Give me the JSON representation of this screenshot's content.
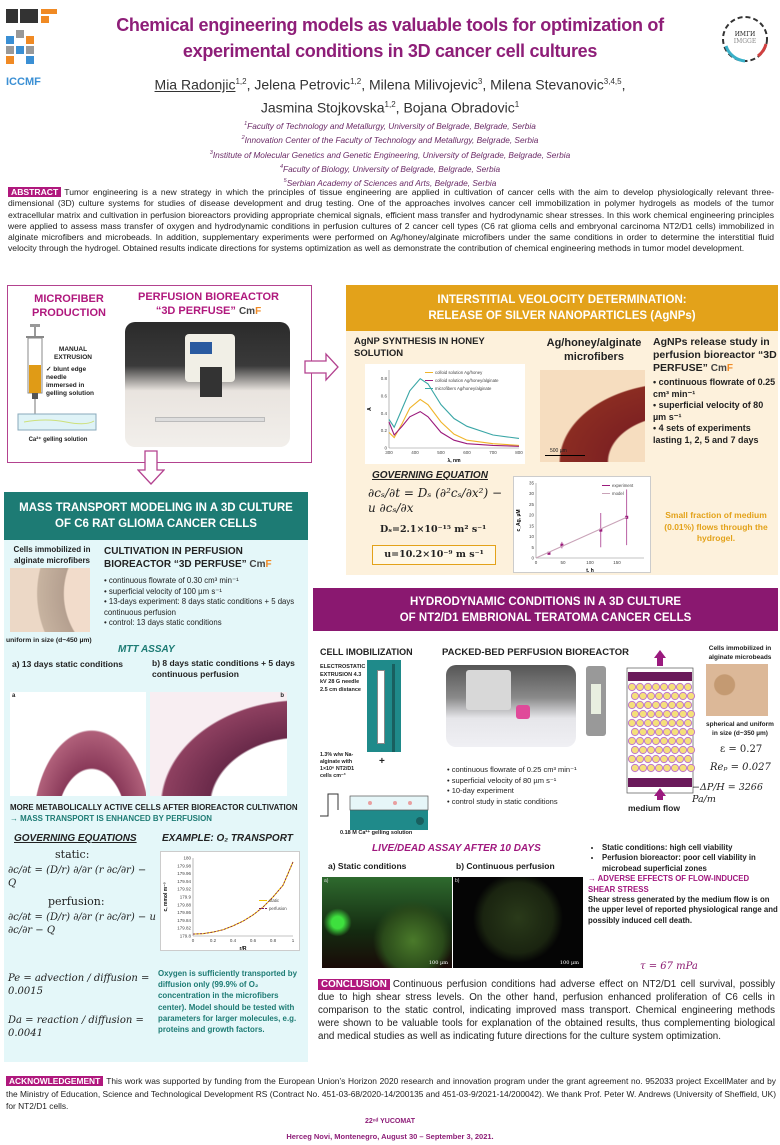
{
  "logos": {
    "left_top": "CMF",
    "left_bottom": "ICCMF",
    "right_top": "ИМГИ",
    "right_bottom": "IMGGE"
  },
  "title": "Chemical engineering models as valuable tools for optimization of experimental conditions in 3D cancer cell cultures",
  "authors": [
    {
      "name": "Mia Radonjic",
      "sup": "1,2",
      "presenting": true
    },
    {
      "name": "Jelena Petrovic",
      "sup": "1,2"
    },
    {
      "name": "Milena Milivojevic",
      "sup": "3"
    },
    {
      "name": "Milena Stevanovic",
      "sup": "3,4,5"
    },
    {
      "name": "Jasmina Stojkovska",
      "sup": "1,2"
    },
    {
      "name": "Bojana Obradovic",
      "sup": "1"
    }
  ],
  "affiliations": [
    {
      "num": "1",
      "text": "Faculty of Technology and Metallurgy, University of Belgrade, Belgrade, Serbia"
    },
    {
      "num": "2",
      "text": "Innovation Center of the Faculty of Technology and Metallurgy, Belgrade, Serbia"
    },
    {
      "num": "3",
      "text": "Institute of Molecular Genetics and Genetic Engineering, University of Belgrade, Belgrade, Serbia"
    },
    {
      "num": "4",
      "text": "Faculty of Biology, University of Belgrade, Belgrade, Serbia"
    },
    {
      "num": "5",
      "text": "Serbian Academy of Sciences and Arts, Belgrade, Serbia"
    }
  ],
  "abstract": {
    "label": "ABSTRACT",
    "text": "Tumor engineering is a new strategy in which the principles of tissue engineering are applied in cultivation of cancer cells with the aim to develop physiologically relevant three-dimensional (3D) culture systems for studies of disease development and drug testing. One of the approaches involves cancer cell immobilization in polymer hydrogels as models of the tumor extracellular matrix and cultivation in perfusion bioreactors providing appropriate chemical signals, efficient mass transfer and hydrodynamic shear stresses. In this work chemical engineering principles were applied to assess mass transfer of oxygen and hydrodynamic conditions in perfusion cultures of 2 cancer cell types (C6 rat glioma cells and embryonal carcinoma NT2/D1 cells) immobilized in alginate microfibers and microbeads. In addition, supplementary experiments were performed on Ag/honey/alginate microfibers under the same conditions in order to determine the interstitial fluid velocity through the hydrogel. Obtained results indicate directions for systems optimization as well as demonstrate the contribution of chemical engineering methods in tumor model development."
  },
  "production": {
    "heading": "MICROFIBER PRODUCTION",
    "extrusion": "MANUAL EXTRUSION",
    "extrusion_item": "blunt edge needle immersed in gelling solution",
    "gelling": "Ca²⁺ gelling solution",
    "bioreactor_heading_1": "PERFUSION BIOREACTOR",
    "bioreactor_heading_2": "“3D PERFUSE”"
  },
  "interstitial": {
    "header_1": "INTERSTITIAL VEOLOCITY DETERMINATION:",
    "header_2": "RELEASE OF SILVER NANOPARTICLES (AgNPs)",
    "synthesis_heading": "AgNP SYNTHESIS IN HONEY SOLUTION",
    "microfibers_heading": "Ag/honey/alginate microfibers",
    "scale_bar": "500 µm",
    "release_heading": "AgNPs release study in perfusion bioreactor “3D PERFUSE”",
    "bullets": [
      "continuous flowrate  of 0.25 cm³ min⁻¹",
      "superficial velocity of 80 µm s⁻¹",
      "4 sets of experiments lasting 1, 2, 5 and 7 days"
    ],
    "governing_heading": "GOVERNING EQUATION",
    "equation": "∂cₛ/∂t = Dₛ (∂²cₛ/∂x²) − u ∂cₛ/∂x",
    "ds": "Dₛ=2.1×10⁻¹⁵ m² s⁻¹",
    "u": "u=10.2×10⁻⁹ m s⁻¹",
    "note": "Small fraction of medium (0.01%) flows through the hydrogel."
  },
  "mass_transport": {
    "header_1": "MASS TRANSPORT MODELING IN A 3D CULTURE",
    "header_2": "OF C6 RAT GLIOMA CANCER CELLS",
    "cells_label": "Cells immobilized in alginate microfibers",
    "uniform": "uniform in size (d~450  µm)",
    "cultivation_heading": "CULTIVATION IN PERFUSION BIOREACTOR “3D PERFUSE”",
    "bullets": [
      "continuous flowrate  of 0.30 cm³ min⁻¹",
      "superficial velocity of 100 µm s⁻¹",
      "13-days experiment: 8 days static conditions + 5 days continuous perfusion",
      "control: 13 days static conditions"
    ],
    "mtt_heading": "MTT ASSAY",
    "mtt_a": "a)  13 days static conditions",
    "mtt_b": "b) 8 days static conditions + 5 days continuous perfusion",
    "img_a": "a",
    "img_b": "b",
    "result_1": "MORE METABOLICALLY ACTIVE CELLS AFTER BIOREACTOR CULTIVATION",
    "result_2": "→ MASS TRANSPORT IS ENHANCED BY PERFUSION",
    "governing_heading": "GOVERNING EQUATIONS",
    "example_heading": "EXAMPLE: O₂ TRANSPORT",
    "static_label": "static:",
    "static_eq": "∂c/∂t = (D/r) ∂/∂r (r ∂c/∂r) − Q",
    "perfusion_label": "perfusion:",
    "perfusion_eq": "∂c/∂t = (D/r) ∂/∂r (r ∂c/∂r) − u ∂c/∂r − Q",
    "pe": "Pe = advection / diffusion = 0.0015",
    "da": "Da = reaction / diffusion = 0.0041",
    "note": "Oxygen is sufficiently transported by diffusion only (99.9% of O₂ concentration in the microfibers center). Model should be tested with parameters for larger molecules, e.g. proteins and growth factors."
  },
  "hydrodynamic": {
    "header_1": "HYDRODYNAMIC CONDITIONS IN A 3D CULTURE",
    "header_2": "OF NT2/D1 EMBRIONAL TERATOMA CANCER CELLS",
    "immobilization_heading": "CELL IMOBILIZATION",
    "extrusion": "ELECTROSTATIC EXTRUSION 4.3 kV 28 G needle 2.5 cm distance",
    "alginate": "1.3% w/w Na-alginate with 1×10⁶ NT2/D1 cells cm⁻³",
    "gelling": "0.18 M Ca²⁺ gelling solution",
    "packed_heading": "PACKED-BED PERFUSION BIOREACTOR",
    "bullets": [
      "continuous flowrate  of 0.25 cm³ min⁻¹",
      "superficial velocity of 80 µm s⁻¹",
      "10-day experiment",
      "control study in static conditions"
    ],
    "medium_flow": "medium flow",
    "beads_label": "Cells immobilized in alginate microbeads",
    "beads_size": "spherical and uniform in size (d~350  µm)",
    "eps": "ε = 0.27",
    "rep": "Reₚ = 0.027",
    "dp": "−ΔP/H = 3266 Pa/m",
    "livedead_heading": "LIVE/DEAD ASSAY AFTER 10 DAYS",
    "ld_a": "a)  Static conditions",
    "ld_b": "b) Continuous perfusion",
    "img_a": "a)",
    "img_b": "b)",
    "scale": "100 µm",
    "findings": [
      "Static conditions: high cell viability",
      "Perfusion bioreactor: poor cell viability in microbead superficial zones"
    ],
    "adverse": "→ ADVERSE EFFECTS OF FLOW-INDUCED SHEAR STRESS",
    "shear_text": "Shear stress generated by the medium flow is on the upper level of reported physiological range and possibly induced cell death.",
    "tau": "τ = 67 mPa"
  },
  "conclusion": {
    "label": "CONCLUSION",
    "text": "Continuous perfusion conditions had adverse effect on NT2/D1 cell survival, possibly due to high shear stress levels. On the other hand, perfusion enhanced proliferation of C6 cells in comparison to the static control, indicating improved mass transport. Chemical engineering methods were shown to be valuable tools for explanation of the obtained results, thus complementing biological and medical studies as well as indicating future directions for the culture system optimization."
  },
  "acknowledgement": {
    "label": "ACKNOWLEDGEMENT",
    "text": "This work was supported by funding from the European Union’s Horizon 2020 research and innovation program under the grant agreement no. 952033 project ExcellMater and by the Ministry of Education, Science and Technological Development RS (Contract No. 451-03-68/2020-14/200135 and 451-03-9/2021-14/200042). We thank Prof. Peter W. Andrews (University of Sheffield, UK) for NT2/D1 cells."
  },
  "footer": {
    "conference": "22ⁿᵈ YUCOMAT",
    "location": "Herceg Novi, Montenegro, August 30 – September 3, 2021."
  },
  "colors": {
    "title": "#8e1e78",
    "orange": "#e3a21a",
    "teal": "#1d7b74",
    "purple": "#8a1870",
    "tag": "#b0187d"
  },
  "chart_data": [
    {
      "type": "line",
      "xlabel": "λ, nm",
      "ylabel": "A",
      "xlim": [
        300,
        800
      ],
      "ylim": [
        0,
        0.9
      ],
      "xticks": [
        300,
        400,
        500,
        600,
        700,
        800
      ],
      "yticks": [
        0,
        0.2,
        0.4,
        0.6,
        0.8
      ],
      "legend": "top-right",
      "grid": false,
      "x": [
        300,
        320,
        350,
        380,
        420,
        450,
        500,
        550,
        600,
        700,
        800
      ],
      "series": [
        {
          "name": "colloid solution Ag/honey",
          "color": "#f0b429",
          "values": [
            0.18,
            0.12,
            0.28,
            0.46,
            0.56,
            0.5,
            0.3,
            0.16,
            0.09,
            0.05,
            0.03
          ]
        },
        {
          "name": "colloid solution Ag/honey/alginate",
          "color": "#9b1b7c",
          "values": [
            0.3,
            0.15,
            0.25,
            0.36,
            0.42,
            0.36,
            0.18,
            0.09,
            0.05,
            0.03,
            0.02
          ]
        },
        {
          "name": "microfibers Ag/honey/alginate",
          "color": "#3aa6a6",
          "values": [
            0.33,
            0.24,
            0.45,
            0.66,
            0.8,
            0.74,
            0.5,
            0.34,
            0.25,
            0.15,
            0.11
          ]
        }
      ]
    },
    {
      "type": "scatter",
      "xlabel": "t, h",
      "ylabel": "c_Ag, µM",
      "xlim": [
        0,
        200
      ],
      "ylim": [
        0,
        35
      ],
      "xticks": [
        0,
        50,
        100,
        150
      ],
      "yticks": [
        0,
        5,
        10,
        15,
        20,
        25,
        30,
        35
      ],
      "legend": "top-right",
      "grid": false,
      "series": [
        {
          "name": "experiment",
          "color": "#9b1b7c",
          "x": [
            24,
            48,
            120,
            168
          ],
          "values": [
            2.2,
            6,
            13,
            19
          ],
          "error": [
            0.7,
            1.5,
            8,
            13
          ]
        },
        {
          "name": "model",
          "color": "#c9a3b8",
          "line": true,
          "x": [
            0,
            168
          ],
          "values": [
            0,
            19
          ]
        }
      ]
    },
    {
      "type": "line",
      "xlabel": "r/R",
      "ylabel": "c, mmol m⁻³",
      "xlim": [
        0,
        1
      ],
      "ylim": [
        179.8,
        180
      ],
      "xticks": [
        0,
        0.2,
        0.4,
        0.6,
        0.8,
        1
      ],
      "yticks": [
        179.8,
        179.82,
        179.84,
        179.86,
        179.88,
        179.9,
        179.92,
        179.94,
        179.96,
        179.98,
        180
      ],
      "legend": "right",
      "grid": false,
      "x": [
        0,
        0.1,
        0.2,
        0.3,
        0.4,
        0.5,
        0.6,
        0.7,
        0.8,
        0.9,
        1
      ],
      "series": [
        {
          "name": "static",
          "color": "#f0c000",
          "values": [
            179.805,
            179.806,
            179.81,
            179.816,
            179.826,
            179.838,
            179.854,
            179.874,
            179.9,
            179.93,
            179.99
          ]
        },
        {
          "name": "perfusion",
          "color": "#7a1a5a",
          "dashed": true,
          "values": [
            179.805,
            179.806,
            179.81,
            179.816,
            179.826,
            179.838,
            179.854,
            179.874,
            179.9,
            179.93,
            179.99
          ]
        }
      ]
    }
  ]
}
